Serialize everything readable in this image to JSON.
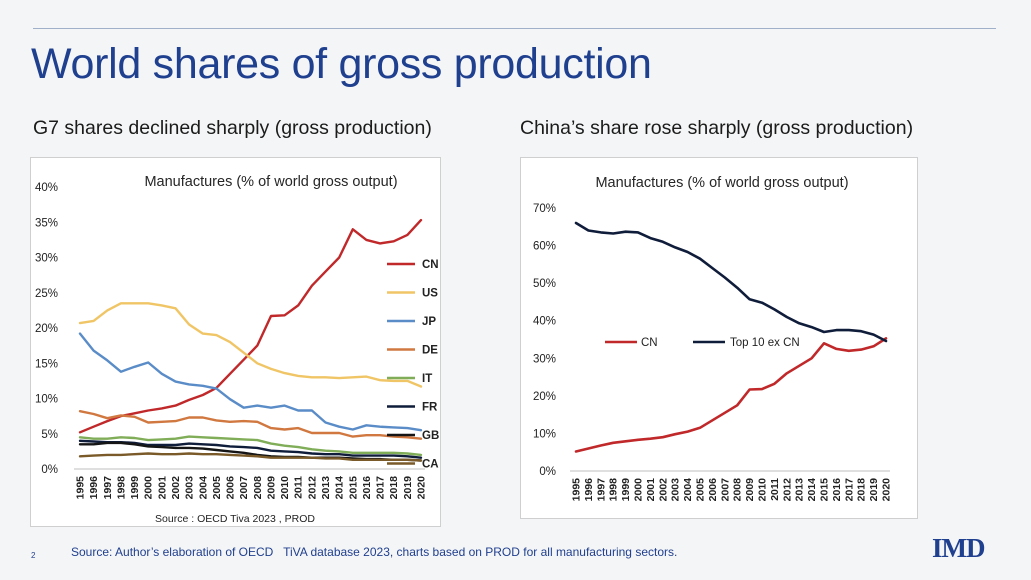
{
  "slide": {
    "title": "World shares of gross production",
    "subtitle_left": "G7 shares declined sharply (gross production)",
    "subtitle_right": "China’s share rose sharply (gross production)",
    "page_number": "2",
    "footer_source": "Source: Author’s elaboration of OECD   TiVA database 2023, charts based on PROD for all manufacturing sectors.",
    "logo_text": "IMD"
  },
  "chart_data": [
    {
      "type": "line",
      "title": "Manufactures (% of world gross output)",
      "source_note": "Source : OECD Tiva 2023 , PROD",
      "xlabel": "",
      "ylabel": "",
      "ylim": [
        0,
        40
      ],
      "yticks": [
        "0%",
        "5%",
        "10%",
        "15%",
        "20%",
        "25%",
        "30%",
        "35%",
        "40%"
      ],
      "grid": false,
      "legend_position": "right",
      "x": [
        "1995",
        "1996",
        "1997",
        "1998",
        "1999",
        "2000",
        "2001",
        "2002",
        "2003",
        "2004",
        "2005",
        "2006",
        "2007",
        "2008",
        "2009",
        "2010",
        "2011",
        "2012",
        "2013",
        "2014",
        "2015",
        "2016",
        "2017",
        "2018",
        "2019",
        "2020"
      ],
      "series": [
        {
          "name": "CN",
          "color": "#c0282a",
          "values": [
            5.2,
            6.0,
            6.8,
            7.5,
            7.9,
            8.3,
            8.6,
            9.0,
            9.8,
            10.5,
            11.5,
            13.5,
            15.5,
            17.5,
            21.7,
            21.8,
            23.2,
            26.0,
            28.0,
            30.0,
            34.0,
            32.5,
            32.0,
            32.3,
            33.2,
            35.3
          ]
        },
        {
          "name": "US",
          "color": "#f0c566",
          "values": [
            20.7,
            21.0,
            22.5,
            23.5,
            23.5,
            23.5,
            23.2,
            22.8,
            20.5,
            19.2,
            19.0,
            18.0,
            16.5,
            15.0,
            14.2,
            13.6,
            13.2,
            13.0,
            13.0,
            12.9,
            13.0,
            13.1,
            12.6,
            12.5,
            12.5,
            11.7
          ]
        },
        {
          "name": "JP",
          "color": "#5a8cc8",
          "values": [
            19.2,
            16.8,
            15.4,
            13.8,
            14.5,
            15.1,
            13.5,
            12.4,
            12.0,
            11.8,
            11.4,
            9.9,
            8.7,
            9.0,
            8.7,
            9.0,
            8.3,
            8.3,
            6.6,
            6.0,
            5.6,
            6.2,
            6.0,
            5.9,
            5.8,
            5.5
          ]
        },
        {
          "name": "DE",
          "color": "#d07840",
          "values": [
            8.2,
            7.8,
            7.2,
            7.6,
            7.4,
            6.6,
            6.7,
            6.8,
            7.3,
            7.3,
            6.9,
            6.7,
            6.8,
            6.7,
            5.8,
            5.6,
            5.8,
            5.1,
            5.1,
            5.1,
            4.6,
            4.8,
            4.8,
            4.6,
            4.5,
            4.3
          ]
        },
        {
          "name": "IT",
          "color": "#80ad58",
          "values": [
            4.5,
            4.3,
            4.3,
            4.5,
            4.4,
            4.1,
            4.2,
            4.3,
            4.6,
            4.5,
            4.4,
            4.3,
            4.2,
            4.1,
            3.6,
            3.3,
            3.1,
            2.8,
            2.6,
            2.5,
            2.3,
            2.3,
            2.3,
            2.3,
            2.2,
            2.0
          ]
        },
        {
          "name": "FR",
          "color": "#0f1c3a",
          "values": [
            4.0,
            3.9,
            3.8,
            3.8,
            3.7,
            3.4,
            3.4,
            3.4,
            3.6,
            3.5,
            3.4,
            3.2,
            3.1,
            3.0,
            2.6,
            2.5,
            2.4,
            2.2,
            2.1,
            2.1,
            1.9,
            1.9,
            1.9,
            1.9,
            1.8,
            1.6
          ]
        },
        {
          "name": "GB",
          "color": "#151515",
          "values": [
            3.5,
            3.5,
            3.7,
            3.7,
            3.5,
            3.2,
            3.1,
            3.0,
            3.0,
            2.9,
            2.7,
            2.5,
            2.3,
            2.0,
            1.8,
            1.7,
            1.7,
            1.6,
            1.6,
            1.6,
            1.5,
            1.4,
            1.4,
            1.3,
            1.3,
            1.2
          ]
        },
        {
          "name": "CA",
          "color": "#7a5a28",
          "values": [
            1.8,
            1.9,
            2.0,
            2.0,
            2.1,
            2.2,
            2.1,
            2.1,
            2.2,
            2.1,
            2.1,
            2.0,
            1.9,
            1.8,
            1.6,
            1.6,
            1.6,
            1.6,
            1.5,
            1.5,
            1.3,
            1.3,
            1.3,
            1.3,
            1.3,
            1.2
          ]
        }
      ]
    },
    {
      "type": "line",
      "title": "Manufactures (% of world gross output)",
      "xlabel": "",
      "ylabel": "",
      "ylim": [
        0,
        70
      ],
      "yticks": [
        "0%",
        "10%",
        "20%",
        "30%",
        "40%",
        "50%",
        "60%",
        "70%"
      ],
      "grid": false,
      "legend_position": "center",
      "x": [
        "1995",
        "1996",
        "1997",
        "1998",
        "1999",
        "2000",
        "2001",
        "2002",
        "2003",
        "2004",
        "2005",
        "2006",
        "2007",
        "2008",
        "2009",
        "2010",
        "2011",
        "2012",
        "2013",
        "2014",
        "2015",
        "2016",
        "2017",
        "2018",
        "2019",
        "2020"
      ],
      "series": [
        {
          "name": "CN",
          "color": "#c0282a",
          "values": [
            5.2,
            6.0,
            6.8,
            7.5,
            7.9,
            8.3,
            8.6,
            9.0,
            9.8,
            10.5,
            11.5,
            13.5,
            15.5,
            17.5,
            21.7,
            21.8,
            23.2,
            26.0,
            28.0,
            30.0,
            34.0,
            32.5,
            32.0,
            32.3,
            33.2,
            35.3
          ]
        },
        {
          "name": "Top  10 ex CN",
          "color": "#0f1c3a",
          "values": [
            66.0,
            64.0,
            63.5,
            63.2,
            63.7,
            63.5,
            62.0,
            61.0,
            59.5,
            58.3,
            56.5,
            54.0,
            51.5,
            48.8,
            45.7,
            44.8,
            43.0,
            41.0,
            39.3,
            38.3,
            37.0,
            37.5,
            37.5,
            37.2,
            36.3,
            34.6
          ]
        }
      ]
    }
  ]
}
